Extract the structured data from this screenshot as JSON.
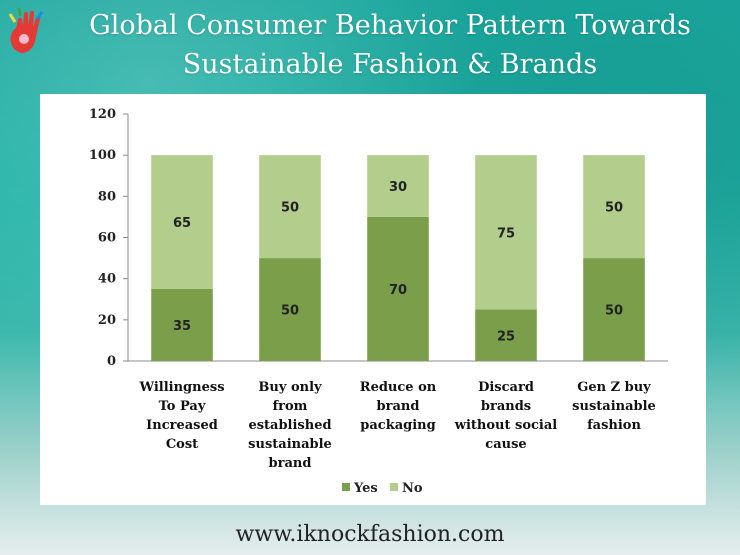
{
  "header": {
    "title_line1": "Global Consumer Behavior Pattern Towards",
    "title_line2": "Sustainable Fashion & Brands"
  },
  "logo": {
    "icon": "hand-logo-icon",
    "colors": [
      "#e53935",
      "#fdd835",
      "#43a047",
      "#1e88e5"
    ]
  },
  "footer": {
    "url": "www.iknockfashion.com"
  },
  "colors": {
    "yes": "#7a9e4a",
    "no": "#b3cd8d"
  },
  "chart_data": {
    "type": "bar",
    "stacked": true,
    "categories": [
      [
        "Willingness",
        "To Pay",
        "Increased",
        "Cost"
      ],
      [
        "Buy only",
        "from",
        "established",
        "sustainable",
        "brand"
      ],
      [
        "Reduce on",
        "brand",
        "packaging"
      ],
      [
        "Discard",
        "brands",
        "without social",
        "cause"
      ],
      [
        "Gen Z buy",
        "sustainable",
        "fashion"
      ]
    ],
    "series": [
      {
        "name": "Yes",
        "values": [
          35,
          50,
          70,
          25,
          50
        ]
      },
      {
        "name": "No",
        "values": [
          65,
          50,
          30,
          75,
          50
        ]
      }
    ],
    "ylim": [
      0,
      120
    ],
    "yticks": [
      0,
      20,
      40,
      60,
      80,
      100,
      120
    ],
    "grid": false,
    "legend": "bottom-center"
  }
}
